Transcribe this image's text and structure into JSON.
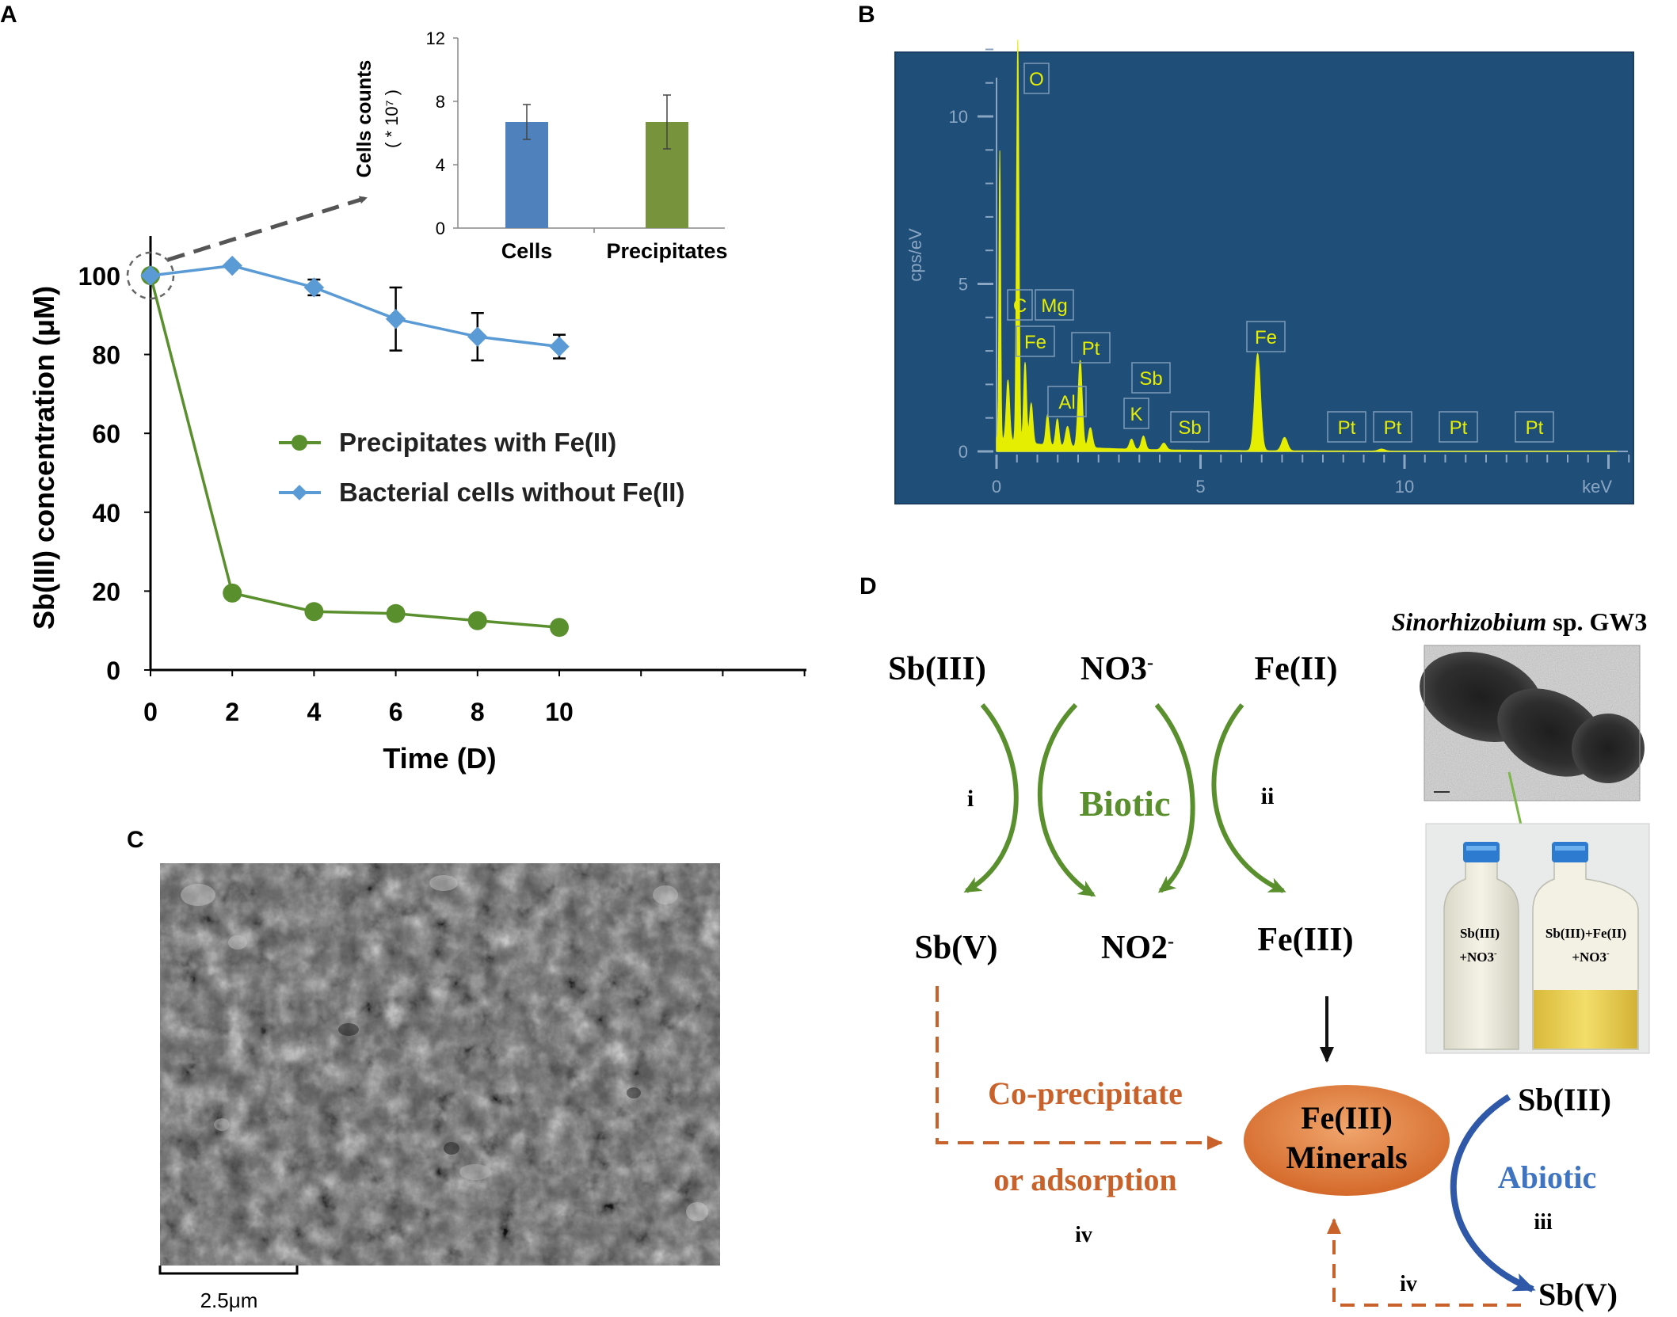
{
  "panels": {
    "a": "A",
    "b": "B",
    "c": "C",
    "d": "D"
  },
  "colors": {
    "green": "#5a8f2e",
    "blue": "#5b9bd5",
    "bar_blue": "#4f81bd",
    "bar_green": "#77933c",
    "eds_bg": "#1f4e79",
    "eds_peak": "#e6ee00",
    "orange": "#c9622a",
    "navy": "#2f59a8"
  },
  "chart_data": [
    {
      "type": "line",
      "panel": "A",
      "xlabel": "Time  (D)",
      "ylabel": "Sb(III) concentration  (μM)",
      "xlim": [
        0,
        12
      ],
      "ylim": [
        0,
        100
      ],
      "xticks": [
        "0",
        "2",
        "4",
        "6",
        "8",
        "10"
      ],
      "yticks": [
        "0",
        "20",
        "40",
        "60",
        "80",
        "100"
      ],
      "x": [
        0,
        2,
        4,
        6,
        8,
        10
      ],
      "series": [
        {
          "name": "Precipitates with Fe(II)",
          "values": [
            100,
            19.5,
            14.8,
            14.3,
            12.5,
            10.8
          ],
          "errors": [
            0,
            0,
            0,
            0,
            0,
            0
          ]
        },
        {
          "name": "Bacterial cells without Fe(II)",
          "values": [
            100,
            102.5,
            97,
            89,
            84.5,
            82
          ],
          "errors": [
            0,
            0,
            2,
            8,
            6,
            3
          ]
        }
      ],
      "legend": "center-right"
    },
    {
      "type": "bar",
      "panel": "A-inset",
      "categories": [
        "Cells",
        "Precipitates"
      ],
      "values": [
        6.7,
        6.7
      ],
      "errors": [
        1.1,
        1.7
      ],
      "ylabel_line1": "Cells counts",
      "ylabel_line2": "( * 10⁷ )",
      "ylim": [
        0,
        12
      ],
      "yticks": [
        "0",
        "4",
        "8",
        "12"
      ]
    },
    {
      "type": "line",
      "panel": "B",
      "xlabel": "keV",
      "ylabel": "cps/eV",
      "xlim": [
        0,
        15.5
      ],
      "ylim": [
        0,
        13
      ],
      "xticks": [
        "0",
        "5",
        "10"
      ],
      "yticks": [
        "0",
        "5",
        "10"
      ],
      "peaks": [
        {
          "label": "O",
          "kev": 0.52,
          "cps": 12.0
        },
        {
          "label": "C",
          "kev": 0.28,
          "cps": 8.2
        },
        {
          "label": "Mg",
          "kev": 1.25,
          "cps": 1.0
        },
        {
          "label": "Fe",
          "kev": 0.7,
          "cps": 2.4
        },
        {
          "label": "Pt",
          "kev": 2.05,
          "cps": 2.6
        },
        {
          "label": "Al",
          "kev": 1.49,
          "cps": 0.7
        },
        {
          "label": "Sb",
          "kev": 3.6,
          "cps": 0.4
        },
        {
          "label": "K",
          "kev": 3.31,
          "cps": 0.3
        },
        {
          "label": "Sb",
          "kev": 4.1,
          "cps": 0.2
        },
        {
          "label": "Fe",
          "kev": 6.4,
          "cps": 2.9
        },
        {
          "label": "Pt",
          "kev": 8.3,
          "cps": 0.05
        },
        {
          "label": "Pt",
          "kev": 9.44,
          "cps": 0.05
        },
        {
          "label": "Pt",
          "kev": 11.07,
          "cps": 0.05
        },
        {
          "label": "Pt",
          "kev": 12.9,
          "cps": 0.05
        }
      ]
    }
  ],
  "sem": {
    "scale_label": "2.5μm"
  },
  "scheme": {
    "top_reactants": [
      "Sb(III)",
      "NO3",
      "Fe(II)"
    ],
    "no3_sup": "-",
    "bottom_products": [
      "Sb(V)",
      "NO2",
      "Fe(III)"
    ],
    "no2_sup": "-",
    "biotic": "Biotic",
    "i": "i",
    "ii": "ii",
    "coprecip_line1": "Co-precipitate",
    "coprecip_line2": "or adsorption",
    "iv_main": "iv",
    "minerals_line1": "Fe(III)",
    "minerals_line2": "Minerals",
    "abiotic_sb3": "Sb(III)",
    "abiotic": "Abiotic",
    "iii": "iii",
    "iv_bottom": "iv",
    "abiotic_sb5": "Sb(V)",
    "organism_italic": "Sinorhizobium",
    "organism_rest": " sp. GW3",
    "bottle_left_line1": "Sb(III)",
    "bottle_left_line2": "+NO3",
    "bottle_right_line1": "Sb(III)+Fe(II)",
    "bottle_right_line2": "+NO3",
    "bottle_sup": "-"
  }
}
